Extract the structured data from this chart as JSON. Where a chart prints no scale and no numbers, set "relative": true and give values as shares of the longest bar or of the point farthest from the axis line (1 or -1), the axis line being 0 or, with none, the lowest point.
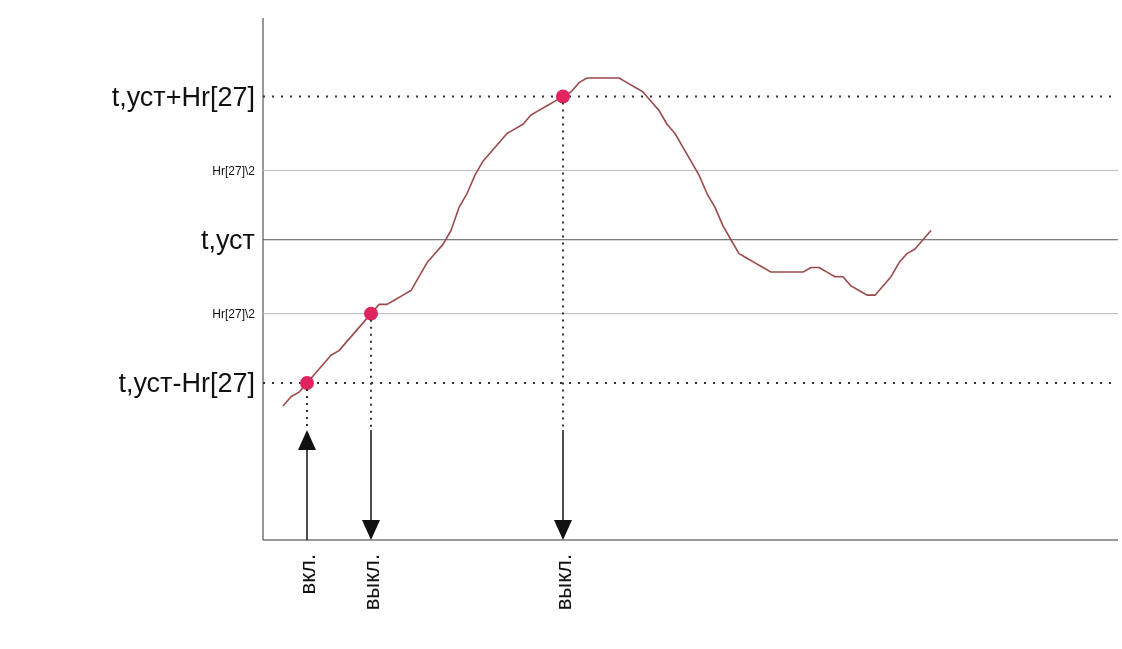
{
  "chart_data": {
    "type": "line",
    "relative": true,
    "marker": "none",
    "categories": [
      null,
      null,
      null,
      "вкл.",
      null,
      null,
      null,
      null,
      null,
      null,
      null,
      "выкл.",
      null,
      null,
      null,
      null,
      null,
      null,
      null,
      null,
      null,
      null,
      null,
      null,
      null,
      null,
      null,
      null,
      null,
      null,
      null,
      null,
      null,
      null,
      null,
      "выкл.",
      null,
      null,
      null,
      null,
      null,
      null,
      null,
      null,
      null,
      null,
      null,
      null,
      null,
      null,
      null,
      null,
      null,
      null,
      null,
      null,
      null,
      null,
      null,
      null,
      null,
      null,
      null,
      null,
      null,
      null,
      null,
      null,
      null,
      null,
      null,
      null,
      null,
      null,
      null,
      null,
      null,
      null,
      null,
      null,
      null,
      null
    ],
    "series": [
      {
        "color": "#9b4a4a",
        "values": [
          0.29,
          0.31,
          0.32,
          0.34,
          0.36,
          0.38,
          0.4,
          0.41,
          0.43,
          0.45,
          0.47,
          0.49,
          0.51,
          0.51,
          0.52,
          0.53,
          0.54,
          0.57,
          0.6,
          0.62,
          0.64,
          0.67,
          0.72,
          0.75,
          0.79,
          0.82,
          0.84,
          0.86,
          0.88,
          0.89,
          0.9,
          0.92,
          0.93,
          0.94,
          0.95,
          0.96,
          0.97,
          0.99,
          1.0,
          1.0,
          1.0,
          1.0,
          1.0,
          0.99,
          0.98,
          0.97,
          0.95,
          0.93,
          0.9,
          0.88,
          0.85,
          0.82,
          0.79,
          0.75,
          0.72,
          0.68,
          0.65,
          0.62,
          0.61,
          0.6,
          0.59,
          0.58,
          0.58,
          0.58,
          0.58,
          0.58,
          0.59,
          0.59,
          0.58,
          0.57,
          0.57,
          0.55,
          0.54,
          0.53,
          0.53,
          0.55,
          0.57,
          0.6,
          0.62,
          0.63,
          0.65,
          0.67
        ]
      },
      {
        "type": "scatter",
        "marker": "circle",
        "color": "#e0245e",
        "values": [
          null,
          null,
          null,
          0.34,
          null,
          null,
          null,
          null,
          null,
          null,
          null,
          0.49,
          null,
          null,
          null,
          null,
          null,
          null,
          null,
          null,
          null,
          null,
          null,
          null,
          null,
          null,
          null,
          null,
          null,
          null,
          null,
          null,
          null,
          null,
          null,
          0.96,
          null,
          null,
          null,
          null,
          null,
          null,
          null,
          null,
          null,
          null,
          null,
          null,
          null,
          null,
          null,
          null,
          null,
          null,
          null,
          null,
          null,
          null,
          null,
          null,
          null,
          null,
          null,
          null,
          null,
          null,
          null,
          null,
          null,
          null,
          null,
          null,
          null,
          null,
          null,
          null,
          null,
          null,
          null,
          null,
          null,
          null
        ]
      }
    ],
    "ref_lines": [
      {
        "axis": "y",
        "value": 0.96,
        "label": "t,уст+Hr[27]",
        "color": "#333333",
        "line_style": "dotted"
      },
      {
        "axis": "y",
        "value": 0.8,
        "label": "Hr[27]\\2",
        "color": "#bbbbbb",
        "line_style": "solid"
      },
      {
        "axis": "y",
        "value": 0.65,
        "label": "t,уст",
        "color": "#555555",
        "line_style": "solid"
      },
      {
        "axis": "y",
        "value": 0.49,
        "label": "Hr[27]\\2",
        "color": "#bbbbbb",
        "line_style": "solid"
      },
      {
        "axis": "y",
        "value": 0.34,
        "label": "t,уст-Hr[27]",
        "color": "#333333",
        "line_style": "dotted"
      }
    ]
  }
}
